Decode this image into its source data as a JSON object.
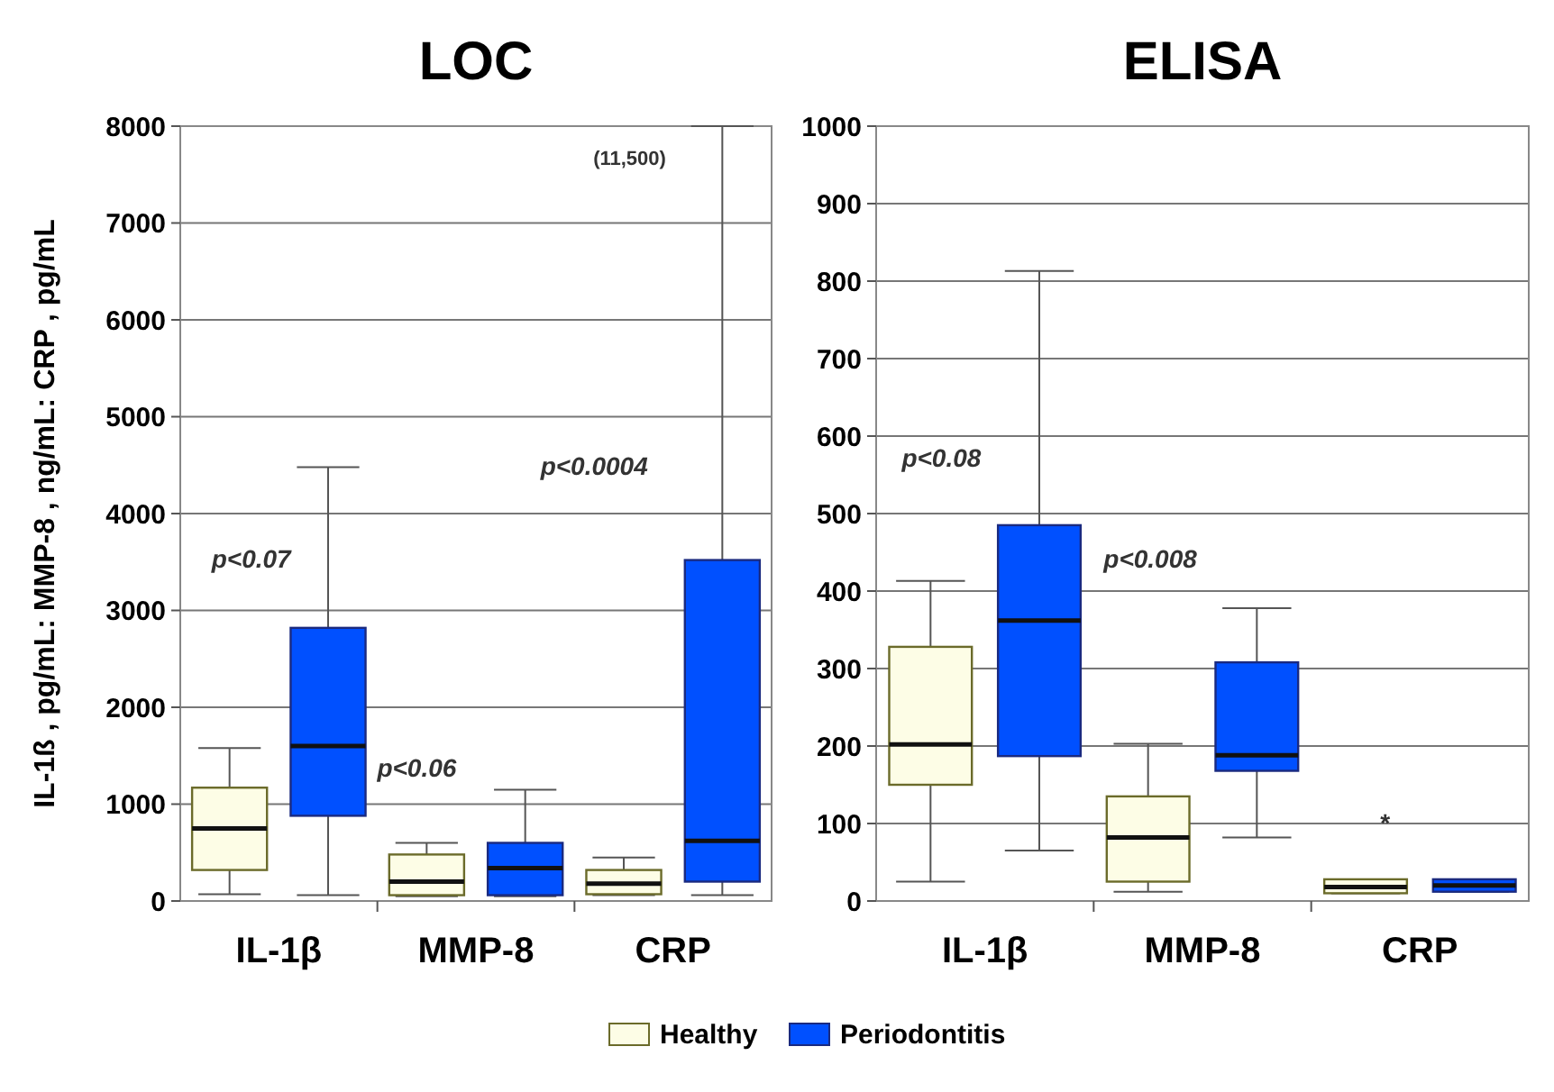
{
  "chart_data": [
    {
      "type": "box",
      "title": "LOC",
      "ylabel": "IL-1ß , pg/mL: MMP-8 , ng/mL: CRP , pg/mL",
      "categories": [
        "IL-1β",
        "MMP-8",
        "CRP"
      ],
      "ylim": [
        0,
        8000
      ],
      "yticks": [
        0,
        1000,
        2000,
        3000,
        4000,
        5000,
        6000,
        7000,
        8000
      ],
      "grid": "y",
      "series": [
        {
          "color": "#fdfde6",
          "boxes": [
            {
              "low": 70,
              "q1": 320,
              "median": 750,
              "q3": 1170,
              "high": 1580
            },
            {
              "low": 50,
              "q1": 60,
              "median": 200,
              "q3": 480,
              "high": 600
            },
            {
              "low": 60,
              "q1": 70,
              "median": 180,
              "q3": 320,
              "high": 450
            }
          ]
        },
        {
          "color": "#0050ff",
          "boxes": [
            {
              "low": 60,
              "q1": 880,
              "median": 1600,
              "q3": 2820,
              "high": 4480
            },
            {
              "low": 50,
              "q1": 60,
              "median": 340,
              "q3": 600,
              "high": 1150
            },
            {
              "low": 60,
              "q1": 200,
              "median": 620,
              "q3": 3520,
              "high": 8000
            }
          ]
        }
      ],
      "annotations": [
        "p<0.07",
        "p<0.06",
        "p<0.0004",
        "(11,500)"
      ]
    },
    {
      "type": "box",
      "title": "ELISA",
      "categories": [
        "IL-1β",
        "MMP-8",
        "CRP"
      ],
      "ylim": [
        0,
        1000
      ],
      "yticks": [
        0,
        100,
        200,
        300,
        400,
        500,
        600,
        700,
        800,
        900,
        1000
      ],
      "grid": "y",
      "legend": "bottom",
      "series": [
        {
          "name": "Healthy",
          "color": "#fdfde6",
          "boxes": [
            {
              "low": 25,
              "q1": 150,
              "median": 202,
              "q3": 328,
              "high": 413
            },
            {
              "low": 12,
              "q1": 25,
              "median": 82,
              "q3": 135,
              "high": 203
            },
            {
              "low": 10,
              "q1": 10,
              "median": 18,
              "q3": 28,
              "high": 28
            }
          ]
        },
        {
          "name": "Periodontitis",
          "color": "#0050ff",
          "boxes": [
            {
              "low": 65,
              "q1": 187,
              "median": 362,
              "q3": 485,
              "high": 813
            },
            {
              "low": 82,
              "q1": 168,
              "median": 188,
              "q3": 308,
              "high": 378
            },
            {
              "low": 12,
              "q1": 12,
              "median": 20,
              "q3": 28,
              "high": 28
            }
          ]
        }
      ],
      "annotations": [
        "p<0.08",
        "p<0.008",
        "*"
      ]
    }
  ]
}
